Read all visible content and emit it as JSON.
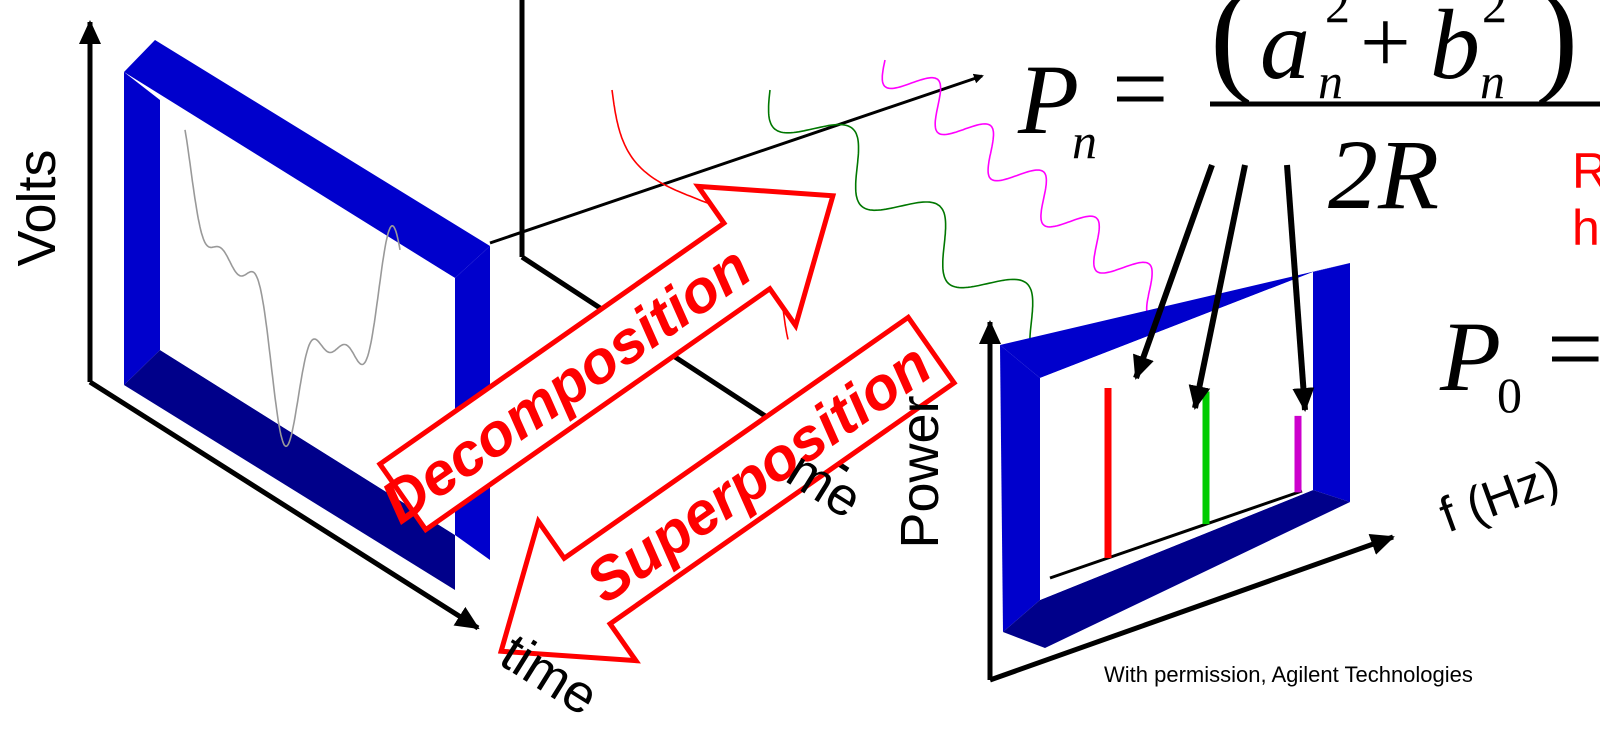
{
  "labels": {
    "volts": "Volts",
    "time": "time",
    "time_back": "me",
    "power": "Power",
    "freq": "f (Hz)",
    "credit": "With permission, Agilent Technologies",
    "decomposition": "Decomposition",
    "superposition": "Superposition",
    "red_note_line1": "R",
    "red_note_line2": "h"
  },
  "formula": {
    "p": "P",
    "sub_n": "n",
    "equals": "=",
    "open_paren": "(",
    "close_paren": ")",
    "a": "a",
    "plus": "+",
    "b": "b",
    "sup2_a": "2",
    "sub_a": "n",
    "sup2_b": "2",
    "sub_b": "n",
    "denominator": "2R",
    "p0": "P",
    "sub_0": "0",
    "p0_equals": "="
  },
  "colors": {
    "frame": "#0000cc",
    "frame_dark": "#00008a",
    "annotation": "#ff0000",
    "axis": "#000000",
    "waveform": "#999999",
    "component_red": "#ff0000",
    "component_green": "#007700",
    "component_magenta": "#ff00ff",
    "spectrum_red": "#ff0000",
    "spectrum_green": "#00cc00",
    "spectrum_magenta": "#cc00cc"
  },
  "chart_data": {
    "type": "bar",
    "categories": [
      "",
      "",
      ""
    ],
    "values": [
      1.0,
      0.78,
      0.45
    ]
  }
}
